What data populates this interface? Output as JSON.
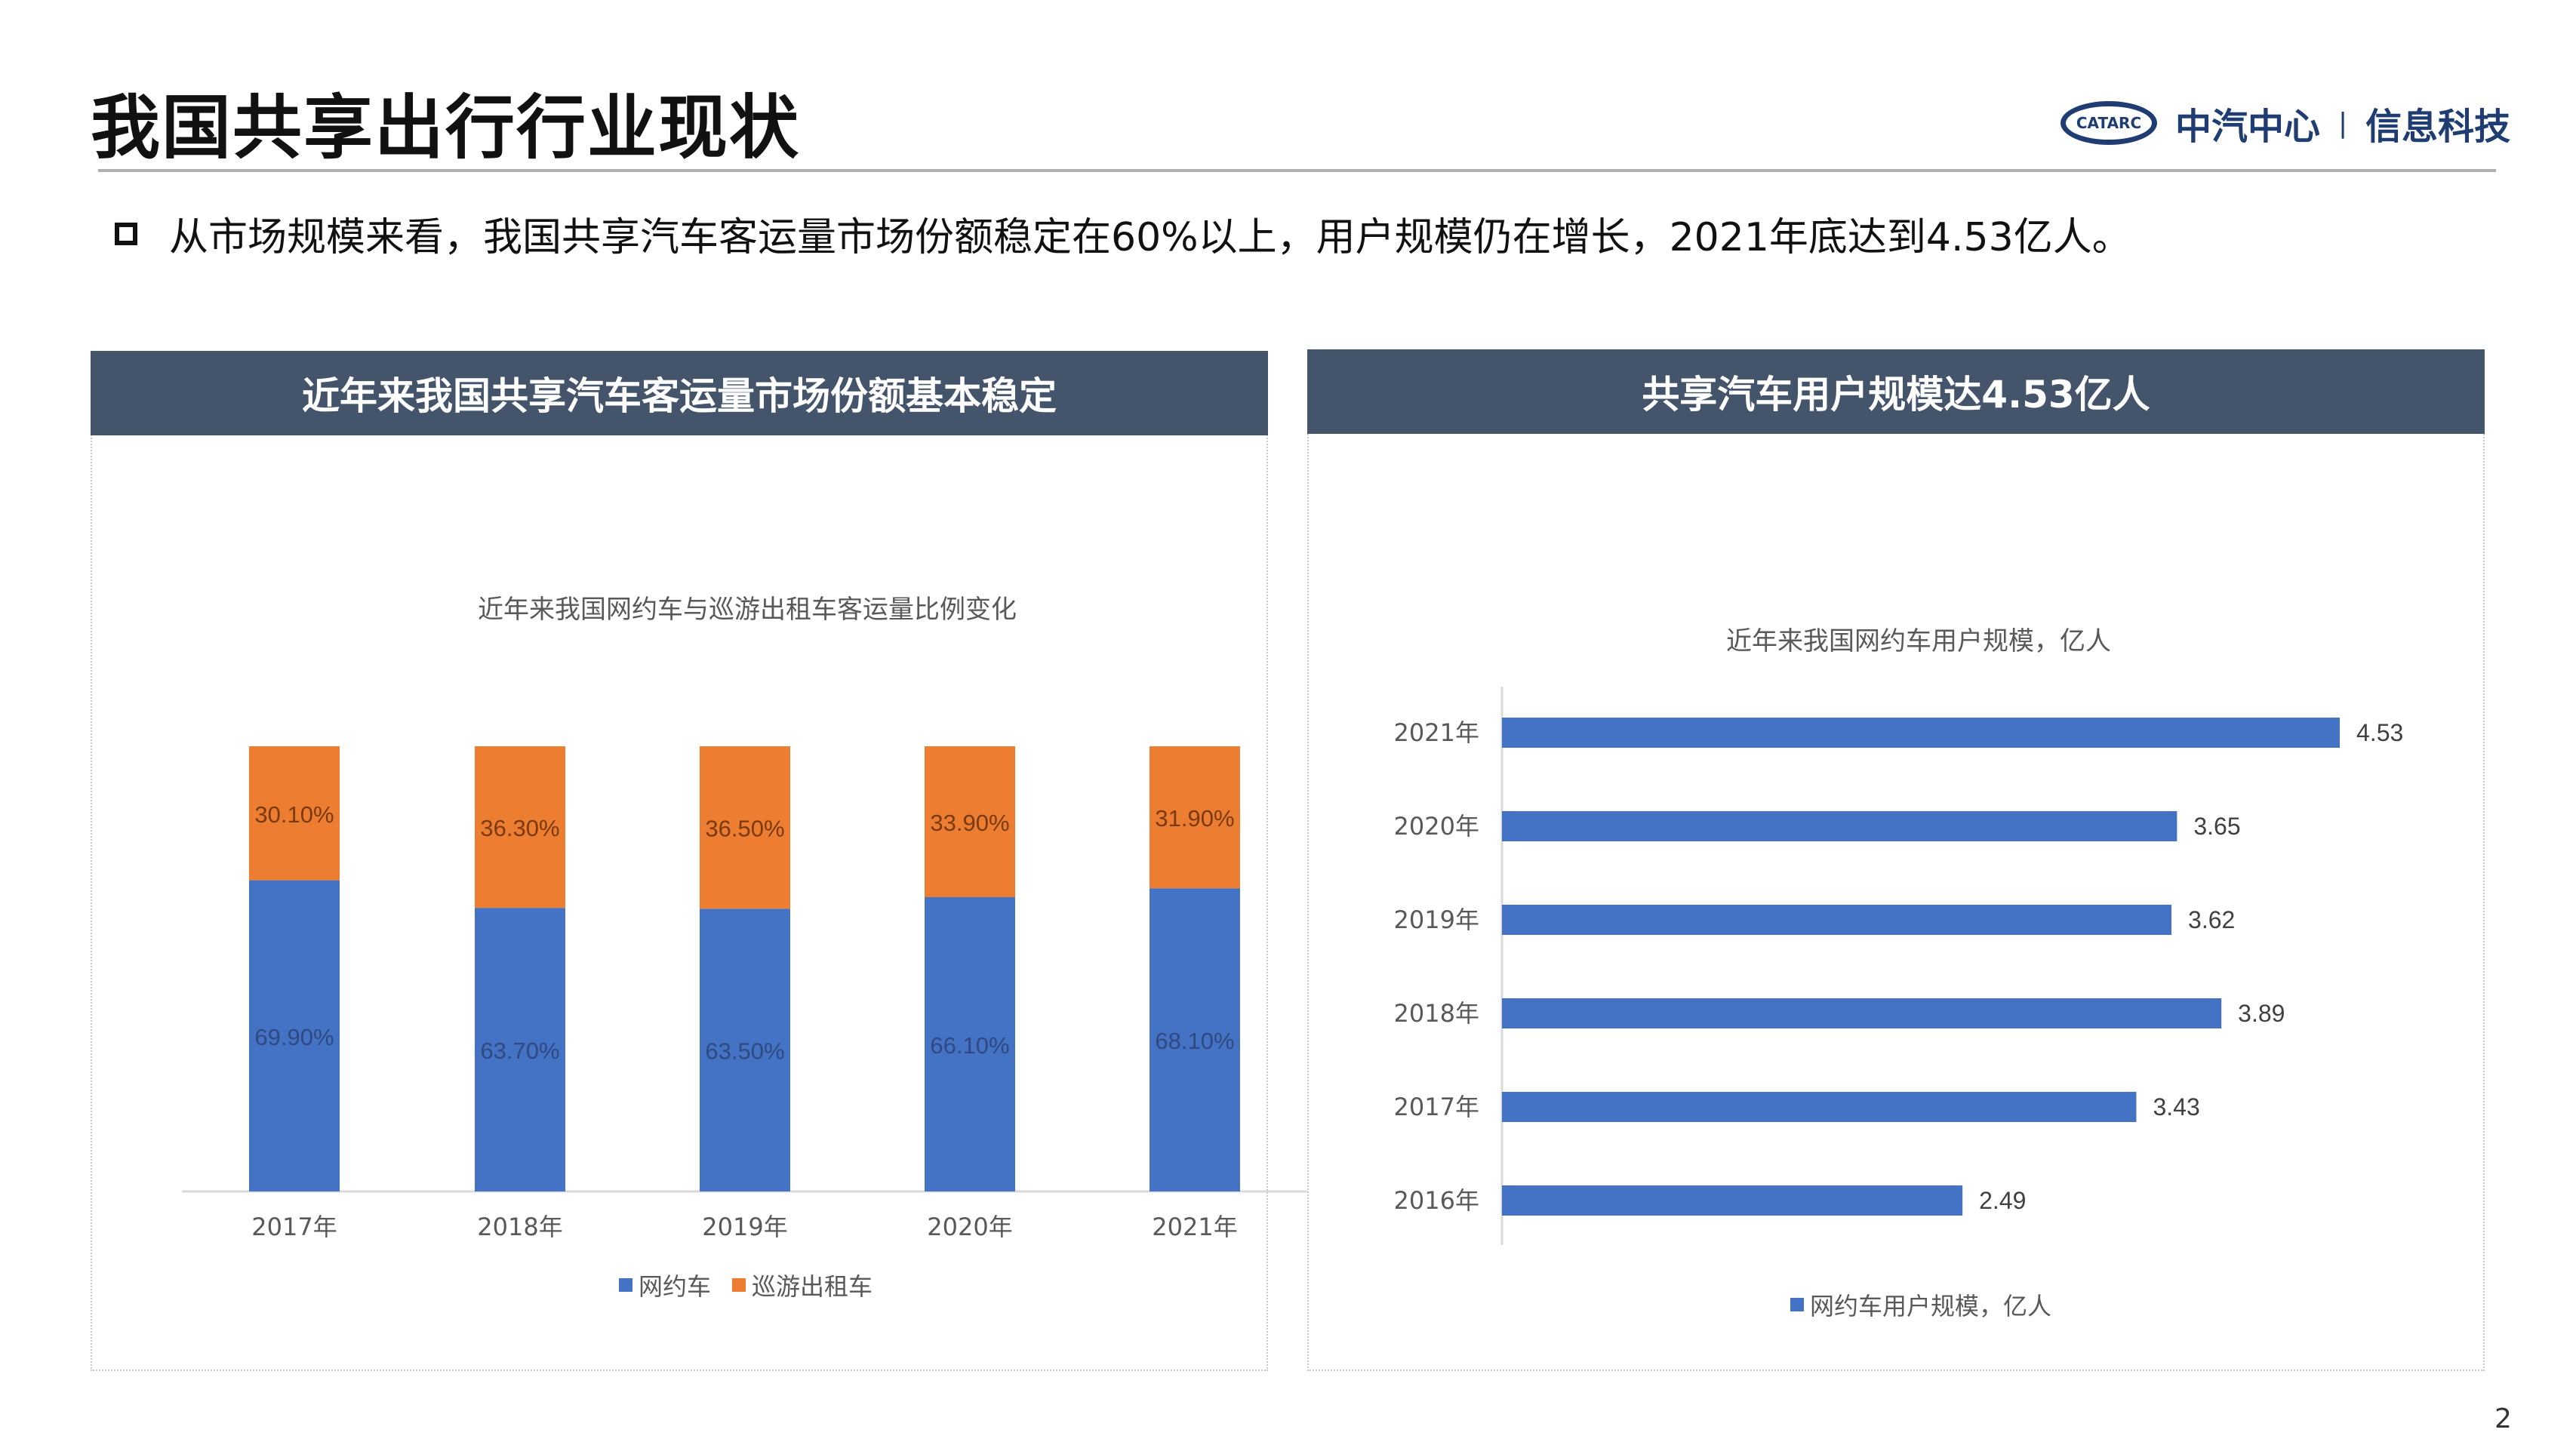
{
  "title": "我国共享出行行业现状",
  "logo": {
    "emblem": "CATARC",
    "text_left": "中汽中心",
    "separator": "|",
    "text_right": "信息科技"
  },
  "bullet": "从市场规模来看，我国共享汽车客运量市场份额稳定在60%以上，用户规模仍在增长，2021年底达到4.53亿人。",
  "left_panel": {
    "header": "近年来我国共享汽车客运量市场份额基本稳定"
  },
  "right_panel": {
    "header": "共享汽车用户规模达4.53亿人"
  },
  "page_number": "2",
  "chart_data": [
    {
      "type": "bar",
      "stacked": true,
      "title": "近年来我国网约车与巡游出租车客运量比例变化",
      "categories": [
        "2017年",
        "2018年",
        "2019年",
        "2020年",
        "2021年"
      ],
      "series": [
        {
          "name": "网约车",
          "color": "#4472c4",
          "values": [
            69.9,
            63.7,
            63.5,
            66.1,
            68.1
          ],
          "labels": [
            "69.90%",
            "63.70%",
            "63.50%",
            "66.10%",
            "68.10%"
          ]
        },
        {
          "name": "巡游出租车",
          "color": "#ed7d31",
          "values": [
            30.1,
            36.3,
            36.5,
            33.9,
            31.9
          ],
          "labels": [
            "30.10%",
            "36.30%",
            "36.50%",
            "33.90%",
            "31.90%"
          ]
        }
      ],
      "ylim": [
        0,
        100
      ],
      "legend": "bottom"
    },
    {
      "type": "bar",
      "orientation": "horizontal",
      "title": "近年来我国网约车用户规模，亿人",
      "categories": [
        "2021年",
        "2020年",
        "2019年",
        "2018年",
        "2017年",
        "2016年"
      ],
      "series": [
        {
          "name": "网约车用户规模，亿人",
          "color": "#4472c4",
          "values": [
            4.53,
            3.65,
            3.62,
            3.89,
            3.43,
            2.49
          ],
          "labels": [
            "4.53",
            "3.65",
            "3.62",
            "3.89",
            "3.43",
            "2.49"
          ]
        }
      ],
      "xlim": [
        0,
        4.53
      ],
      "legend": "bottom"
    }
  ]
}
